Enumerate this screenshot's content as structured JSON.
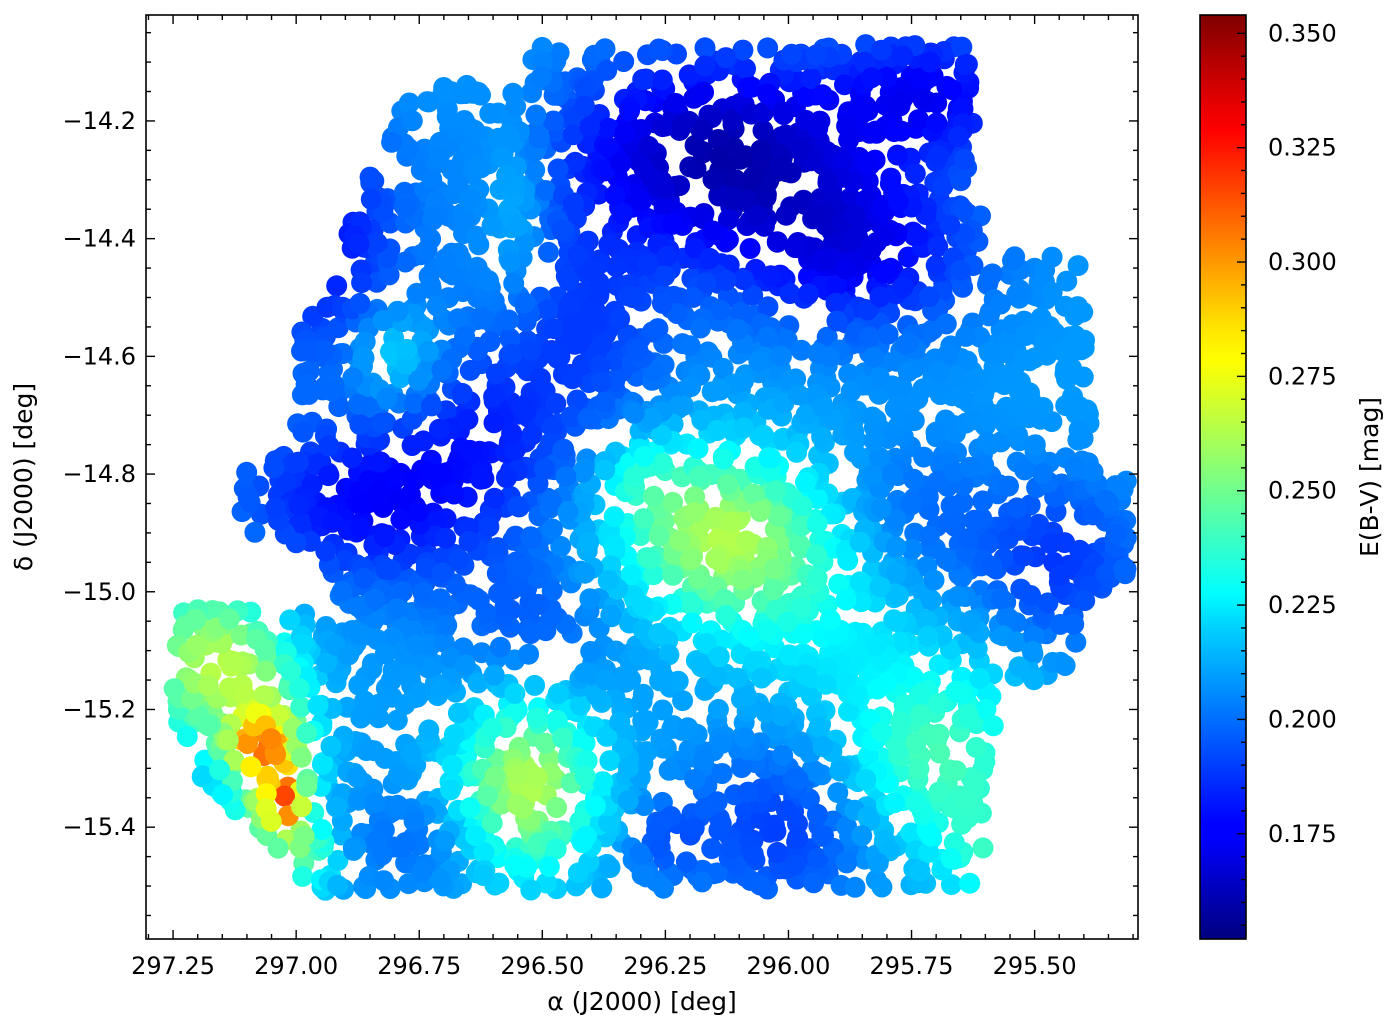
{
  "chart_data": {
    "type": "scatter",
    "subtype": "extinction map (colour-coded points)",
    "xlabel": "α (J2000) [deg]",
    "ylabel": "δ (J2000) [deg]",
    "colorbar_label": "E(B-V) [mag]",
    "x_reversed": true,
    "xlim": [
      297.305,
      295.29
    ],
    "ylim": [
      -15.59,
      -14.02
    ],
    "x_ticks": [
      297.25,
      297.0,
      296.75,
      296.5,
      296.25,
      296.0,
      295.75,
      295.5
    ],
    "x_tick_labels": [
      "297.25",
      "297.00",
      "296.75",
      "296.50",
      "296.25",
      "296.00",
      "295.75",
      "295.50"
    ],
    "y_ticks": [
      -14.2,
      -14.4,
      -14.6,
      -14.8,
      -15.0,
      -15.2,
      -15.4
    ],
    "y_tick_labels": [
      "−14.2",
      "−14.4",
      "−14.6",
      "−14.8",
      "−15.0",
      "−15.2",
      "−15.4"
    ],
    "colorbar_range": [
      0.152,
      0.354
    ],
    "colorbar_ticks": [
      0.175,
      0.2,
      0.225,
      0.25,
      0.275,
      0.3,
      0.325,
      0.35
    ],
    "colorbar_tick_labels": [
      "0.175",
      "0.200",
      "0.225",
      "0.250",
      "0.275",
      "0.300",
      "0.325",
      "0.350"
    ],
    "colormap": "jet",
    "grid": false,
    "footprint_polygon": [
      [
        296.51,
        -14.07
      ],
      [
        295.63,
        -14.07
      ],
      [
        295.6,
        -14.43
      ],
      [
        295.41,
        -14.43
      ],
      [
        295.38,
        -14.78
      ],
      [
        295.31,
        -14.78
      ],
      [
        295.31,
        -15.0
      ],
      [
        295.41,
        -15.04
      ],
      [
        295.42,
        -15.12
      ],
      [
        295.55,
        -15.18
      ],
      [
        295.6,
        -15.3
      ],
      [
        295.6,
        -15.5
      ],
      [
        296.4,
        -15.51
      ],
      [
        296.96,
        -15.51
      ],
      [
        297.25,
        -15.27
      ],
      [
        297.25,
        -15.03
      ],
      [
        296.98,
        -15.03
      ],
      [
        296.92,
        -15.0
      ],
      [
        296.95,
        -14.93
      ],
      [
        297.12,
        -14.9
      ],
      [
        297.1,
        -14.78
      ],
      [
        297.0,
        -14.75
      ],
      [
        296.99,
        -14.56
      ],
      [
        296.92,
        -14.46
      ],
      [
        296.88,
        -14.35
      ],
      [
        296.79,
        -14.18
      ],
      [
        296.68,
        -14.12
      ],
      [
        296.58,
        -14.16
      ]
    ],
    "extinction_field": {
      "base": 0.208,
      "features": [
        {
          "ra": 296.15,
          "dec": -14.25,
          "sx": 0.22,
          "sy": 0.12,
          "amp": -0.045
        },
        {
          "ra": 295.86,
          "dec": -14.42,
          "sx": 0.18,
          "sy": 0.1,
          "amp": -0.03
        },
        {
          "ra": 295.7,
          "dec": -14.15,
          "sx": 0.15,
          "sy": 0.08,
          "amp": -0.028
        },
        {
          "ra": 296.95,
          "dec": -14.4,
          "sx": 0.12,
          "sy": 0.15,
          "amp": -0.028
        },
        {
          "ra": 296.85,
          "dec": -14.85,
          "sx": 0.2,
          "sy": 0.1,
          "amp": -0.03
        },
        {
          "ra": 296.62,
          "dec": -14.72,
          "sx": 0.12,
          "sy": 0.1,
          "amp": -0.016
        },
        {
          "ra": 296.42,
          "dec": -14.55,
          "sx": 0.14,
          "sy": 0.14,
          "amp": -0.018
        },
        {
          "ra": 296.52,
          "dec": -15.05,
          "sx": 0.12,
          "sy": 0.08,
          "amp": -0.012
        },
        {
          "ra": 296.0,
          "dec": -15.4,
          "sx": 0.14,
          "sy": 0.1,
          "amp": -0.02
        },
        {
          "ra": 296.75,
          "dec": -15.42,
          "sx": 0.1,
          "sy": 0.06,
          "amp": -0.01
        },
        {
          "ra": 296.25,
          "dec": -15.42,
          "sx": 0.06,
          "sy": 0.05,
          "amp": -0.012
        },
        {
          "ra": 295.75,
          "dec": -14.88,
          "sx": 0.12,
          "sy": 0.1,
          "amp": -0.012
        },
        {
          "ra": 295.45,
          "dec": -14.95,
          "sx": 0.12,
          "sy": 0.1,
          "amp": -0.02
        },
        {
          "ra": 296.8,
          "dec": -14.6,
          "sx": 0.06,
          "sy": 0.06,
          "amp": 0.018
        },
        {
          "ra": 296.55,
          "dec": -14.35,
          "sx": 0.05,
          "sy": 0.12,
          "amp": 0.012
        },
        {
          "ra": 296.15,
          "dec": -14.9,
          "sx": 0.14,
          "sy": 0.1,
          "amp": 0.05
        },
        {
          "ra": 296.3,
          "dec": -14.8,
          "sx": 0.06,
          "sy": 0.05,
          "amp": 0.015
        },
        {
          "ra": 296.53,
          "dec": -15.33,
          "sx": 0.1,
          "sy": 0.1,
          "amp": 0.055
        },
        {
          "ra": 295.7,
          "dec": -15.28,
          "sx": 0.14,
          "sy": 0.12,
          "amp": 0.035
        },
        {
          "ra": 295.6,
          "dec": -15.45,
          "sx": 0.06,
          "sy": 0.06,
          "amp": 0.02
        },
        {
          "ra": 295.95,
          "dec": -15.0,
          "sx": 0.15,
          "sy": 0.12,
          "amp": 0.018
        },
        {
          "ra": 297.17,
          "dec": -15.12,
          "sx": 0.1,
          "sy": 0.1,
          "amp": 0.055
        },
        {
          "ra": 297.05,
          "dec": -15.3,
          "sx": 0.06,
          "sy": 0.1,
          "amp": 0.06
        },
        {
          "ra": 297.08,
          "dec": -15.26,
          "sx": 0.04,
          "sy": 0.03,
          "amp": 0.04
        },
        {
          "ra": 297.02,
          "dec": -15.36,
          "sx": 0.025,
          "sy": 0.04,
          "amp": 0.06
        },
        {
          "ra": 296.97,
          "dec": -15.45,
          "sx": 0.04,
          "sy": 0.04,
          "amp": 0.03
        }
      ]
    }
  }
}
